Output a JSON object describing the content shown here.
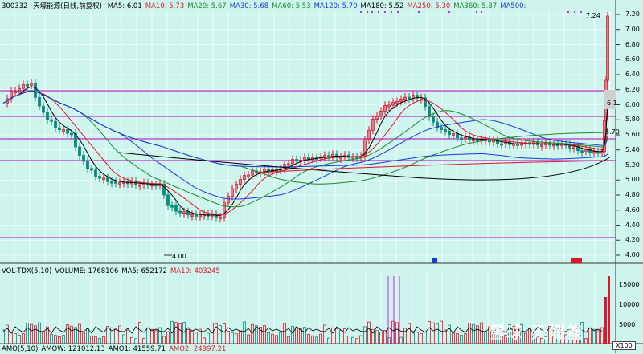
{
  "main_header": {
    "code": "300332",
    "name": "天壕能源(日线,前复权)",
    "mas": [
      {
        "label": "MA5: 6.01",
        "color": "#000000"
      },
      {
        "label": "MA10: 5.73",
        "color": "#e0142a"
      },
      {
        "label": "MA20: 5.67",
        "color": "#1a8a2a"
      },
      {
        "label": "MA30: 5.68",
        "color": "#1a3ad8"
      },
      {
        "label": "MA60: 5.53",
        "color": "#1a8a2a"
      },
      {
        "label": "MA120: 5.70",
        "color": "#1a3ad8"
      },
      {
        "label": "MA180: 5.52",
        "color": "#000000"
      },
      {
        "label": "MA250: 5.30",
        "color": "#e0142a"
      },
      {
        "label": "MA360: 5.37",
        "color": "#1a8a2a"
      },
      {
        "label": "MA500: ",
        "color": "#1a3ad8"
      }
    ]
  },
  "volume_header": {
    "items": [
      {
        "label": "VOL-TDX(5,10)",
        "color": "#000000"
      },
      {
        "label": "VOLUME: 1768106",
        "color": "#000000"
      },
      {
        "label": "MA5: 652172",
        "color": "#000000"
      },
      {
        "label": "MA10: 403245",
        "color": "#e0142a"
      }
    ]
  },
  "amo_header": {
    "items": [
      {
        "label": "AMO(5,10)",
        "color": "#000000"
      },
      {
        "label": "AMOW: 121012.13",
        "color": "#000000"
      },
      {
        "label": "AMO1: 41559.71",
        "color": "#000000"
      },
      {
        "label": "AMO2: 24997.21",
        "color": "#e0142a"
      }
    ]
  },
  "price_axis": [
    "7.20",
    "7.00",
    "6.80",
    "6.60",
    "6.40",
    "6.20",
    "6.00",
    "5.80",
    "5.60",
    "5.40",
    "5.20",
    "5.00",
    "4.80",
    "4.60",
    "4.40",
    "4.20",
    "4.00"
  ],
  "volume_axis": [
    "15000",
    "10000",
    "5000"
  ],
  "annotations": {
    "low": "4.00",
    "high": "7.24",
    "tag_61": "6.1",
    "tag_570": "5.70",
    "x100": "X100"
  },
  "watermark": "雪球 天壕能"
}
